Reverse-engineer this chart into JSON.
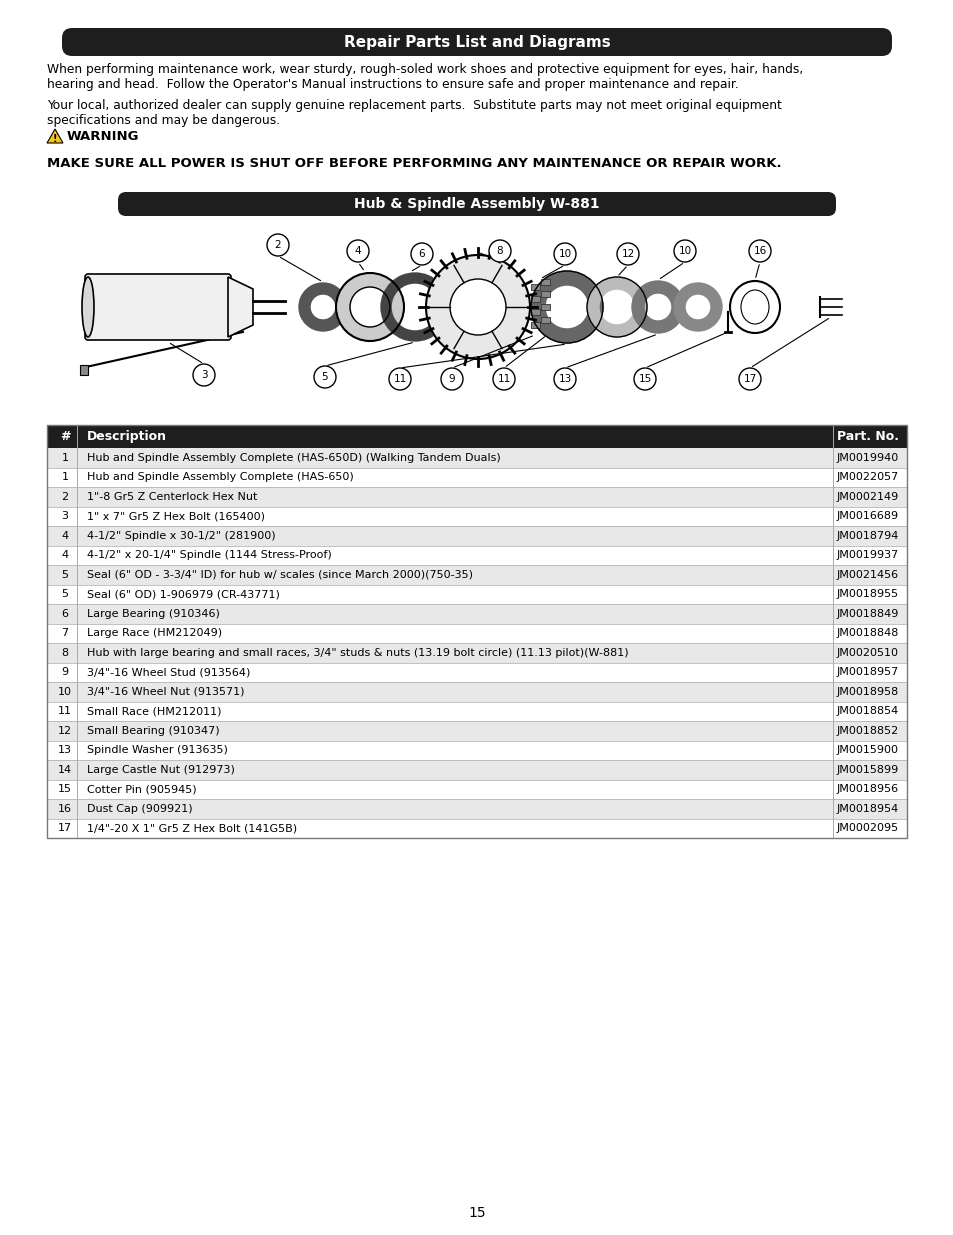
{
  "title": "Repair Parts List and Diagrams",
  "subtitle1": "When performing maintenance work, wear sturdy, rough-soled work shoes and protective equipment for eyes, hair, hands,",
  "subtitle2": "hearing and head.  Follow the Operator's Manual instructions to ensure safe and proper maintenance and repair.",
  "subtitle3": "Your local, authorized dealer can supply genuine replacement parts.  Substitute parts may not meet original equipment",
  "subtitle4": "specifications and may be dangerous.",
  "warning_title": "WARNING",
  "warning_text": "MAKE SURE ALL POWER IS SHUT OFF BEFORE PERFORMING ANY MAINTENANCE OR REPAIR WORK.",
  "assembly_title": "Hub & Spindle Assembly W-881",
  "table_header": [
    "#",
    "Description",
    "Part. No."
  ],
  "table_rows": [
    [
      "1",
      "Hub and Spindle Assembly Complete (HAS-650D) (Walking Tandem Duals)",
      "JM0019940"
    ],
    [
      "1",
      "Hub and Spindle Assembly Complete (HAS-650)",
      "JM0022057"
    ],
    [
      "2",
      "1\"-8 Gr5 Z Centerlock Hex Nut",
      "JM0002149"
    ],
    [
      "3",
      "1\" x 7\" Gr5 Z Hex Bolt (165400)",
      "JM0016689"
    ],
    [
      "4",
      "4-1/2\" Spindle x 30-1/2\" (281900)",
      "JM0018794"
    ],
    [
      "4",
      "4-1/2\" x 20-1/4\" Spindle (1144 Stress-Proof)",
      "JM0019937"
    ],
    [
      "5",
      "Seal (6\" OD - 3-3/4\" ID) for hub w/ scales (since March 2000)(750-35)",
      "JM0021456"
    ],
    [
      "5",
      "Seal (6\" OD) 1-906979 (CR-43771)",
      "JM0018955"
    ],
    [
      "6",
      "Large Bearing (910346)",
      "JM0018849"
    ],
    [
      "7",
      "Large Race (HM212049)",
      "JM0018848"
    ],
    [
      "8",
      "Hub with large bearing and small races, 3/4\" studs & nuts (13.19 bolt circle) (11.13 pilot)(W-881)",
      "JM0020510"
    ],
    [
      "9",
      "3/4\"-16 Wheel Stud (913564)",
      "JM0018957"
    ],
    [
      "10",
      "3/4\"-16 Wheel Nut (913571)",
      "JM0018958"
    ],
    [
      "11",
      "Small Race (HM212011)",
      "JM0018854"
    ],
    [
      "12",
      "Small Bearing (910347)",
      "JM0018852"
    ],
    [
      "13",
      "Spindle Washer (913635)",
      "JM0015900"
    ],
    [
      "14",
      "Large Castle Nut (912973)",
      "JM0015899"
    ],
    [
      "15",
      "Cotter Pin (905945)",
      "JM0018956"
    ],
    [
      "16",
      "Dust Cap (909921)",
      "JM0018954"
    ],
    [
      "17",
      "1/4\"-20 X 1\" Gr5 Z Hex Bolt (141G5B)",
      "JM0002095"
    ]
  ],
  "page_number": "15",
  "bg_color": "#ffffff",
  "header_bg": "#1e1e1e",
  "header_text_color": "#ffffff",
  "table_header_bg": "#1e1e1e",
  "table_row_alt_bg": "#e8e8e8",
  "table_row_bg": "#ffffff",
  "border_color": "#aaaaaa"
}
